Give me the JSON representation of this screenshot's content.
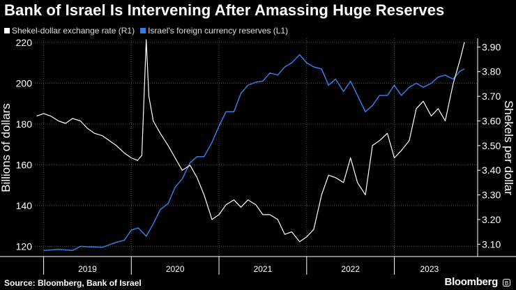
{
  "chart_data": {
    "type": "line",
    "title": "Bank of Israel Is Intervening After Amassing Huge Reserves",
    "legend": [
      {
        "name": "Shekel-dollar exchange rate (R1)",
        "color": "#ffffff"
      },
      {
        "name": "Israel's foreign currency reserves (L1)",
        "color": "#2f7fe8"
      }
    ],
    "ylabel_left": "Billions of dollars",
    "ylabel_right": "Shekels per dollar",
    "ylim_left": [
      115,
      222
    ],
    "ylim_right": [
      3.05,
      3.935
    ],
    "yticks_left": [
      "120",
      "140",
      "160",
      "180",
      "200",
      "220"
    ],
    "yticks_right": [
      "3.10",
      "3.20",
      "3.30",
      "3.40",
      "3.50",
      "3.60",
      "3.70",
      "3.80",
      "3.90"
    ],
    "yticks_left_values": [
      120,
      140,
      160,
      180,
      200,
      220
    ],
    "yticks_right_values": [
      3.1,
      3.2,
      3.3,
      3.4,
      3.5,
      3.6,
      3.7,
      3.8,
      3.9
    ],
    "xlim": [
      2018.9,
      2023.95
    ],
    "x_year_starts": [
      2019,
      2020,
      2021,
      2022,
      2023
    ],
    "xlabels": [
      "2019",
      "2020",
      "2021",
      "2022",
      "2023"
    ],
    "xlabel_centers": [
      2019.5,
      2020.5,
      2021.5,
      2022.5,
      2023.4
    ],
    "series": [
      {
        "name": "Israel's foreign currency reserves (L1)",
        "axis": "left",
        "color": "#2f7fe8",
        "x": [
          2019.0,
          2019.17,
          2019.33,
          2019.42,
          2019.5,
          2019.67,
          2019.83,
          2019.92,
          2020.0,
          2020.08,
          2020.17,
          2020.25,
          2020.33,
          2020.42,
          2020.5,
          2020.58,
          2020.67,
          2020.75,
          2020.83,
          2020.92,
          2021.0,
          2021.08,
          2021.17,
          2021.25,
          2021.33,
          2021.42,
          2021.5,
          2021.58,
          2021.67,
          2021.75,
          2021.83,
          2021.92,
          2022.0,
          2022.08,
          2022.17,
          2022.25,
          2022.33,
          2022.42,
          2022.5,
          2022.58,
          2022.67,
          2022.75,
          2022.83,
          2022.92,
          2023.0,
          2023.08,
          2023.17,
          2023.25,
          2023.33,
          2023.42,
          2023.5,
          2023.58,
          2023.67,
          2023.75,
          2023.8
        ],
        "values": [
          118,
          118.5,
          118,
          120,
          119.8,
          119.5,
          122,
          123,
          128,
          129,
          125,
          131,
          138,
          141,
          149,
          153,
          161,
          164,
          164,
          171,
          179,
          186,
          186,
          195,
          199,
          200.5,
          201,
          205,
          204,
          208,
          210,
          214,
          210,
          208,
          207,
          199,
          202,
          196,
          201,
          194,
          186,
          189,
          194,
          194,
          199,
          194,
          198,
          200,
          198,
          200,
          203,
          204,
          202,
          206,
          207
        ]
      },
      {
        "name": "Shekel-dollar exchange rate (R1)",
        "axis": "right",
        "color": "#ffffff",
        "x": [
          2018.92,
          2019.0,
          2019.08,
          2019.17,
          2019.25,
          2019.33,
          2019.42,
          2019.5,
          2019.58,
          2019.67,
          2019.75,
          2019.83,
          2019.92,
          2020.0,
          2020.07,
          2020.12,
          2020.17,
          2020.2,
          2020.25,
          2020.33,
          2020.42,
          2020.5,
          2020.58,
          2020.67,
          2020.75,
          2020.83,
          2020.92,
          2021.0,
          2021.08,
          2021.17,
          2021.25,
          2021.33,
          2021.42,
          2021.5,
          2021.58,
          2021.67,
          2021.75,
          2021.83,
          2021.92,
          2022.0,
          2022.08,
          2022.17,
          2022.25,
          2022.33,
          2022.42,
          2022.5,
          2022.58,
          2022.67,
          2022.75,
          2022.83,
          2022.92,
          2023.0,
          2023.08,
          2023.17,
          2023.25,
          2023.33,
          2023.42,
          2023.5,
          2023.58,
          2023.67,
          2023.75,
          2023.8
        ],
        "values": [
          3.62,
          3.63,
          3.62,
          3.6,
          3.59,
          3.61,
          3.6,
          3.57,
          3.55,
          3.54,
          3.52,
          3.5,
          3.47,
          3.45,
          3.44,
          3.46,
          3.93,
          3.7,
          3.6,
          3.55,
          3.5,
          3.45,
          3.4,
          3.42,
          3.37,
          3.3,
          3.2,
          3.22,
          3.26,
          3.28,
          3.25,
          3.28,
          3.26,
          3.22,
          3.22,
          3.2,
          3.14,
          3.15,
          3.11,
          3.13,
          3.16,
          3.3,
          3.38,
          3.37,
          3.35,
          3.45,
          3.35,
          3.3,
          3.5,
          3.52,
          3.55,
          3.45,
          3.48,
          3.52,
          3.65,
          3.68,
          3.62,
          3.65,
          3.6,
          3.75,
          3.85,
          3.92
        ]
      }
    ]
  },
  "footer": {
    "source": "Source: Bloomberg, Bank of Israel",
    "brand": "Bloomberg",
    "brand_icon": "B"
  }
}
